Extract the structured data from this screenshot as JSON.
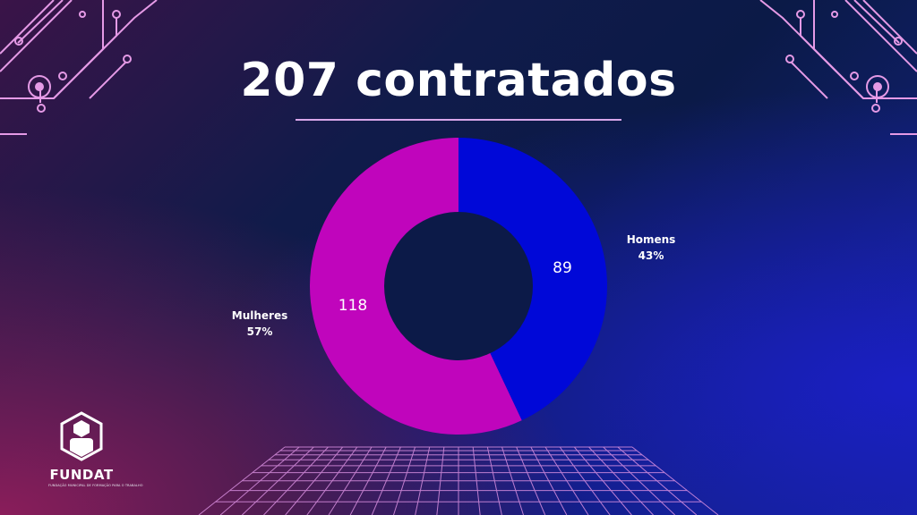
{
  "slide": {
    "title": "207 contratados"
  },
  "colors": {
    "homens": "#0008d8",
    "mulheres": "#c005bc",
    "accent": "#e59ae6",
    "hole": "#0c1a48"
  },
  "logo": {
    "icon": "person-hexagon-icon",
    "text": "FUNDAT",
    "tagline": "FUNDAÇÃO MUNICIPAL DE FORMAÇÃO PARA O TRABALHO"
  },
  "chart_data": {
    "type": "pie",
    "variant": "donut",
    "title": "",
    "total": 207,
    "series": [
      {
        "name": "Homens",
        "value": 89,
        "percent": "43%"
      },
      {
        "name": "Mulheres",
        "value": 118,
        "percent": "57%"
      }
    ]
  }
}
